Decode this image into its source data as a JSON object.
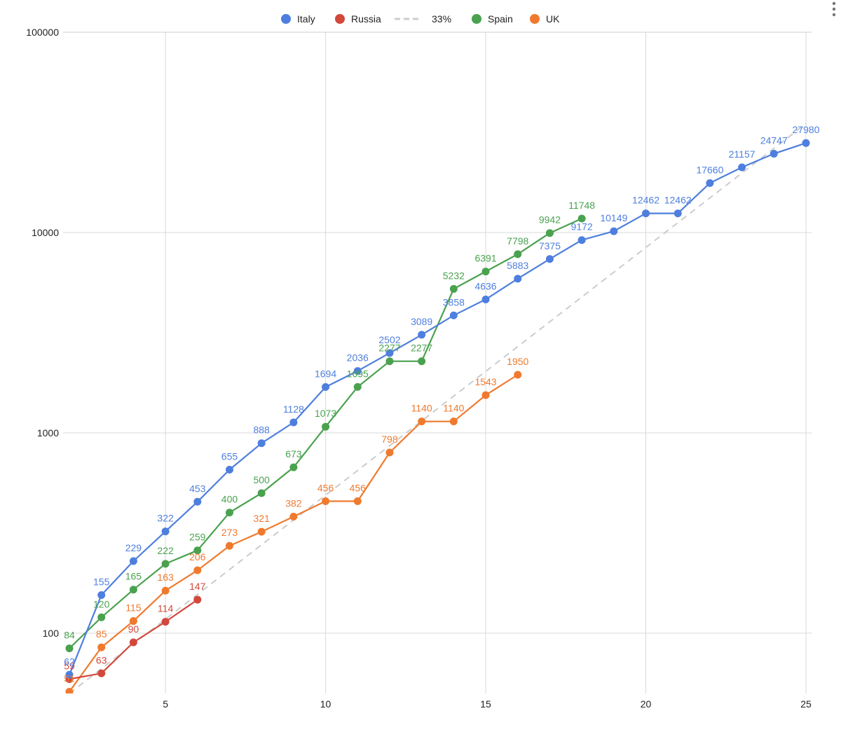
{
  "chart_data": {
    "type": "line",
    "title": "",
    "xlabel": "",
    "ylabel": "",
    "y_scale": "log",
    "xlim": [
      2,
      25
    ],
    "ylim": [
      50,
      100000
    ],
    "grid": true,
    "legend_position": "top",
    "x_ticks": [
      "5",
      "10",
      "15",
      "20",
      "25"
    ],
    "y_ticks": [
      "100",
      "1000",
      "10000",
      "100000"
    ],
    "series": [
      {
        "name": "Italy",
        "color": "#4e7fde",
        "style": "solid",
        "x": [
          2,
          3,
          4,
          5,
          6,
          7,
          8,
          9,
          10,
          11,
          12,
          13,
          14,
          15,
          16,
          17,
          18,
          19,
          20,
          21,
          22,
          23,
          24,
          25
        ],
        "values": [
          62,
          155,
          229,
          322,
          453,
          655,
          888,
          1128,
          1694,
          2036,
          2502,
          3089,
          3858,
          4636,
          5883,
          7375,
          9172,
          10149,
          12462,
          12462,
          17660,
          21157,
          24747,
          27980
        ],
        "labels": [
          "62",
          "155",
          "229",
          "322",
          "453",
          "655",
          "888",
          "1128",
          "1694",
          "2036",
          "2502",
          "3089",
          "3858",
          "4636",
          "5883",
          "7375",
          "9172",
          "10149",
          "12462",
          "12462",
          "17660",
          "21157",
          "24747",
          "27980"
        ]
      },
      {
        "name": "Russia",
        "color": "#d2483c",
        "style": "solid",
        "x": [
          2,
          3,
          4,
          5,
          6
        ],
        "values": [
          59,
          63,
          90,
          114,
          147
        ],
        "labels": [
          "59",
          "63",
          "90",
          "114",
          "147"
        ]
      },
      {
        "name": "33%",
        "color": "#cccccc",
        "style": "dashed",
        "x": [
          2,
          25
        ],
        "values": [
          50,
          35000
        ],
        "labels": []
      },
      {
        "name": "Spain",
        "color": "#4aa24f",
        "style": "solid",
        "x": [
          2,
          3,
          4,
          5,
          6,
          7,
          8,
          9,
          10,
          11,
          12,
          13,
          14,
          15,
          16,
          17,
          18
        ],
        "values": [
          84,
          120,
          165,
          222,
          259,
          400,
          500,
          673,
          1073,
          1695,
          2277,
          2277,
          5232,
          6391,
          7798,
          9942,
          11748
        ],
        "labels": [
          "84",
          "120",
          "165",
          "222",
          "259",
          "400",
          "500",
          "673",
          "1073",
          "1695",
          "2277",
          "2277",
          "5232",
          "6391",
          "7798",
          "9942",
          "11748"
        ]
      },
      {
        "name": "UK",
        "color": "#ef7a2e",
        "style": "solid",
        "x": [
          2,
          3,
          4,
          5,
          6,
          7,
          8,
          9,
          10,
          11,
          12,
          13,
          14,
          15,
          16
        ],
        "values": [
          51,
          85,
          115,
          163,
          206,
          273,
          321,
          382,
          456,
          456,
          798,
          1140,
          1140,
          1543,
          1950
        ],
        "labels": [
          "51",
          "85",
          "115",
          "163",
          "206",
          "273",
          "321",
          "382",
          "456",
          "456",
          "798",
          "1140",
          "1140",
          "1543",
          "1950"
        ]
      }
    ]
  }
}
